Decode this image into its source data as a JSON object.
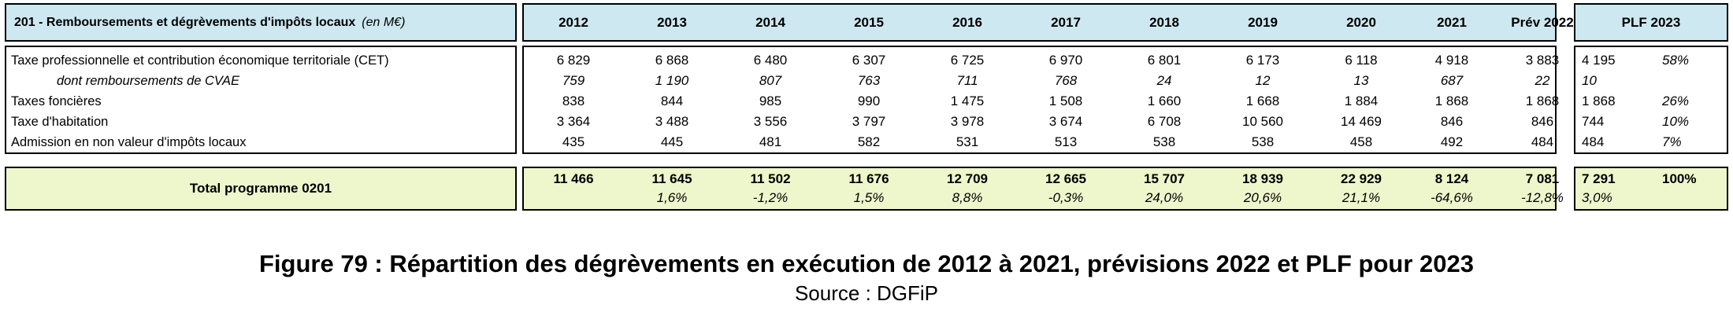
{
  "table": {
    "title": "201 - Remboursements et dégrèvements d'impôts locaux",
    "unit": "(en M€)",
    "years": [
      "2012",
      "2013",
      "2014",
      "2015",
      "2016",
      "2017",
      "2018",
      "2019",
      "2020",
      "2021",
      "Prév 2022"
    ],
    "plf_header": "PLF 2023",
    "rows": [
      {
        "label": "Taxe professionnelle et contribution économique territoriale (CET)",
        "italic": false,
        "values": [
          "6 829",
          "6 868",
          "6 480",
          "6 307",
          "6 725",
          "6 970",
          "6 801",
          "6 173",
          "6 118",
          "4 918",
          "3 883"
        ],
        "plf_value": "4 195",
        "plf_share": "58%"
      },
      {
        "label": "dont remboursements de CVAE",
        "italic": true,
        "values": [
          "759",
          "1 190",
          "807",
          "763",
          "711",
          "768",
          "24",
          "12",
          "13",
          "687",
          "22"
        ],
        "plf_value": "10",
        "plf_share": ""
      },
      {
        "label": "Taxes foncières",
        "italic": false,
        "values": [
          "838",
          "844",
          "985",
          "990",
          "1 475",
          "1 508",
          "1 660",
          "1 668",
          "1 884",
          "1 868",
          "1 868"
        ],
        "plf_value": "1 868",
        "plf_share": "26%"
      },
      {
        "label": "Taxe d'habitation",
        "italic": false,
        "values": [
          "3 364",
          "3 488",
          "3 556",
          "3 797",
          "3 978",
          "3 674",
          "6 708",
          "10 560",
          "14 469",
          "846",
          "846"
        ],
        "plf_value": "744",
        "plf_share": "10%"
      },
      {
        "label": "Admission en non valeur d'impôts locaux",
        "italic": false,
        "values": [
          "435",
          "445",
          "481",
          "582",
          "531",
          "513",
          "538",
          "538",
          "458",
          "492",
          "484"
        ],
        "plf_value": "484",
        "plf_share": "7%"
      }
    ],
    "total": {
      "label": "Total programme 0201",
      "values": [
        "11 466",
        "11 645",
        "11 502",
        "11 676",
        "12 709",
        "12 665",
        "15 707",
        "18 939",
        "22 929",
        "8 124",
        "7 081"
      ],
      "growth": [
        "",
        "1,6%",
        "-1,2%",
        "1,5%",
        "8,8%",
        "-0,3%",
        "24,0%",
        "20,6%",
        "21,1%",
        "-64,6%",
        "-12,8%"
      ],
      "plf_value": "7 291",
      "plf_share": "100%",
      "plf_growth": "3,0%"
    }
  },
  "caption": "Figure 79 : Répartition des dégrèvements en exécution de 2012 à 2021, prévisions 2022 et PLF pour 2023",
  "source": "Source : DGFiP"
}
